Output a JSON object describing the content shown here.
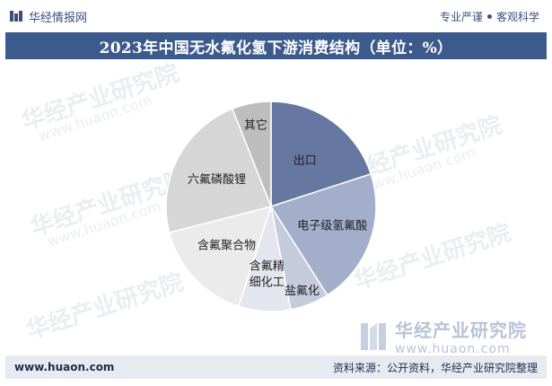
{
  "header": {
    "brand_name": "华经情报网",
    "slogan_left": "专业严谨",
    "slogan_right": "客观科学"
  },
  "watermark": {
    "name": "华经产业研究院",
    "url": "www.huaon.com"
  },
  "footer": {
    "url": "www.huaon.com",
    "source": "资料来源：公开资料，华经产业研究院整理"
  },
  "colors": {
    "title_bg": "#3d5a8c",
    "footer_bg": "#e6eaf1",
    "brand": "#3b4f7a"
  },
  "chart_data": {
    "type": "pie",
    "title": "2023年中国无水氟化氢下游消费结构（单位：%）",
    "start_angle_deg": 0,
    "direction": "clockwise",
    "slices": [
      {
        "label": "出口",
        "value": 20,
        "color": "#6677a1"
      },
      {
        "label": "电子级氢氟酸",
        "value": 21,
        "color": "#a3aeca"
      },
      {
        "label": "盐氟化",
        "value": 6,
        "color": "#c5cbdc"
      },
      {
        "label": "含氟精细化工",
        "value": 8,
        "color": "#e3e6ee"
      },
      {
        "label": "含氟聚合物",
        "value": 16,
        "color": "#ebebeb"
      },
      {
        "label": "六氟磷酸锂",
        "value": 23,
        "color": "#d6d6d6"
      },
      {
        "label": "其它",
        "value": 6,
        "color": "#bdbdbd"
      }
    ]
  }
}
